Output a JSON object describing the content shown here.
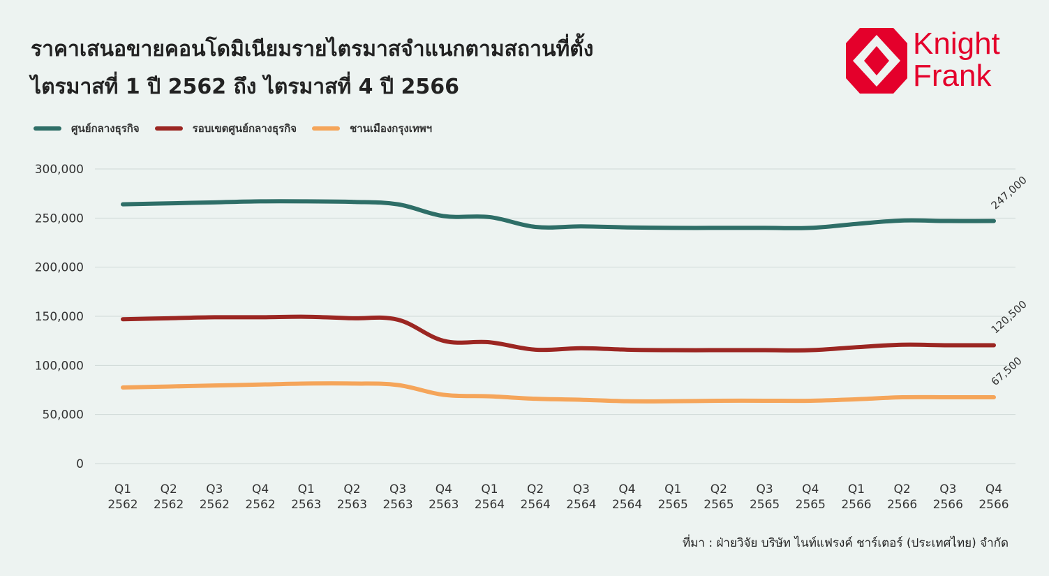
{
  "title": {
    "line1": "ราคาเสนอขายคอนโดมิเนียมรายไตรมาสจำแนกตามสถานที่ตั้ง",
    "line2": "ไตรมาสที่ 1 ปี 2562 ถึง ไตรมาสที่ 4 ปี 2566"
  },
  "logo": {
    "line1": "Knight",
    "line2": "Frank",
    "color": "#e4002b"
  },
  "source": "ที่มา : ฝ่ายวิจัย บริษัท ไนท์แฟรงค์ ชาร์เตอร์ (ประเทศไทย) จำกัด",
  "chart_data": {
    "type": "line",
    "ylim": [
      0,
      300000
    ],
    "yticks": [
      0,
      50000,
      100000,
      150000,
      200000,
      250000,
      300000
    ],
    "ytick_labels": [
      "0",
      "50,000",
      "100,000",
      "150,000",
      "200,000",
      "250,000",
      "300,000"
    ],
    "grid": true,
    "legend_position": "top-left",
    "categories": [
      [
        "Q1",
        "2562"
      ],
      [
        "Q2",
        "2562"
      ],
      [
        "Q3",
        "2562"
      ],
      [
        "Q4",
        "2562"
      ],
      [
        "Q1",
        "2563"
      ],
      [
        "Q2",
        "2563"
      ],
      [
        "Q3",
        "2563"
      ],
      [
        "Q4",
        "2563"
      ],
      [
        "Q1",
        "2564"
      ],
      [
        "Q2",
        "2564"
      ],
      [
        "Q3",
        "2564"
      ],
      [
        "Q4",
        "2564"
      ],
      [
        "Q1",
        "2565"
      ],
      [
        "Q2",
        "2565"
      ],
      [
        "Q3",
        "2565"
      ],
      [
        "Q4",
        "2565"
      ],
      [
        "Q1",
        "2566"
      ],
      [
        "Q2",
        "2566"
      ],
      [
        "Q3",
        "2566"
      ],
      [
        "Q4",
        "2566"
      ]
    ],
    "series": [
      {
        "name": "ศูนย์กลางธุรกิจ",
        "color": "#2e6e67",
        "values": [
          264000,
          265000,
          266000,
          267000,
          267000,
          266500,
          264000,
          252000,
          251000,
          241000,
          241500,
          240500,
          240000,
          240000,
          240000,
          240000,
          244000,
          247500,
          247000,
          247000
        ],
        "end_label": "247,000"
      },
      {
        "name": "รอบเขตศูนย์กลางธุรกิจ",
        "color": "#9b2622",
        "values": [
          147000,
          148000,
          149000,
          149000,
          149500,
          148000,
          146500,
          125000,
          123500,
          116000,
          117500,
          116000,
          115500,
          115500,
          115500,
          115500,
          118500,
          121000,
          120500,
          120500
        ],
        "end_label": "120,500"
      },
      {
        "name": "ชานเมืองกรุงเทพฯ",
        "color": "#f5a55a",
        "values": [
          77500,
          78500,
          79500,
          80500,
          81500,
          81500,
          80000,
          70000,
          68500,
          66000,
          65000,
          63500,
          63500,
          64000,
          64000,
          64000,
          65500,
          67500,
          67500,
          67500
        ],
        "end_label": "67,500"
      }
    ]
  }
}
